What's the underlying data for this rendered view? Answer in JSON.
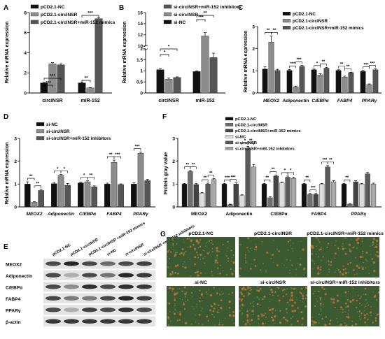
{
  "colors": {
    "black": "#111111",
    "dark_gray": "#555555",
    "gray": "#8c8c8c",
    "light_gray": "#cfcfcf",
    "axis": "#000000",
    "blot_bg": "#e4e4e4",
    "micro_green": "#3b5a32",
    "micro_orange": "#c0753a"
  },
  "chart_data": [
    {
      "panel": "A",
      "type": "bar",
      "categories": [
        "circINSR",
        "miR-152"
      ],
      "ylabel": "Relative mRNA expression",
      "ylim": [
        0,
        8
      ],
      "yticks": [
        0,
        2,
        4,
        6,
        8
      ],
      "series": [
        {
          "name": "pCD2.1-NC",
          "color": "#111111",
          "values": [
            1.0,
            1.0
          ],
          "err": [
            0.06,
            0.05
          ]
        },
        {
          "name": "pCD2.1-circINSR",
          "color": "#8c8c8c",
          "values": [
            2.9,
            0.5
          ],
          "err": [
            0.12,
            0.04
          ]
        },
        {
          "name": "pCD2.1-circINSR+miR-152 mimics",
          "color": "#555555",
          "values": [
            2.8,
            7.4
          ],
          "err": [
            0.1,
            0.12
          ]
        }
      ],
      "sig_labels": [
        "***",
        "***",
        "**",
        "***"
      ]
    },
    {
      "panel": "B",
      "type": "bar",
      "categories": [
        "circINSR",
        "miR-152"
      ],
      "ylabel": "Relative mRNA expression",
      "ylim": [
        0,
        16
      ],
      "yticks": [
        0.0,
        0.5,
        1.0,
        1.5,
        2.0,
        10,
        12,
        14,
        16
      ],
      "axis_break": [
        2.0,
        10
      ],
      "series": [
        {
          "name": "si-NC",
          "color": "#111111",
          "values": [
            1.05,
            0.97
          ],
          "err": [
            0.05,
            0.03
          ]
        },
        {
          "name": "si-circINSR",
          "color": "#8c8c8c",
          "values": [
            0.62,
            11.8
          ],
          "err": [
            0.05,
            0.6
          ]
        },
        {
          "name": "si-circINSR+miR-152 inhibitors",
          "color": "#555555",
          "values": [
            0.7,
            1.6
          ],
          "err": [
            0.03,
            0.2
          ]
        }
      ],
      "legend_order": [
        "si-circINSR+miR-152 inhibitors",
        "si-circINSR",
        "si-NC"
      ],
      "sig_labels": [
        "*",
        "*",
        "***",
        "**"
      ]
    },
    {
      "panel": "C",
      "type": "bar",
      "categories": [
        "MEOX2",
        "Adiponectin",
        "C/EBPα",
        "FABP4",
        "PPARγ"
      ],
      "ylabel": "Relative mRNA expression",
      "ylim": [
        0,
        3
      ],
      "yticks": [
        0,
        1,
        2,
        3
      ],
      "series": [
        {
          "name": "pCD2.1-NC",
          "color": "#111111",
          "values": [
            1.08,
            1.02,
            1.05,
            1.02,
            0.98
          ],
          "err": [
            0.1,
            0.04,
            0.03,
            0.03,
            0.04
          ]
        },
        {
          "name": "pCD2.1-circINSR",
          "color": "#8c8c8c",
          "values": [
            2.3,
            0.28,
            0.82,
            0.72,
            0.38
          ],
          "err": [
            0.28,
            0.03,
            0.05,
            0.04,
            0.03
          ]
        },
        {
          "name": "pCD2.1-circINSR+miR-152 mimics",
          "color": "#555555",
          "values": [
            1.02,
            1.2,
            1.12,
            0.92,
            1.05
          ],
          "err": [
            0.05,
            0.05,
            0.04,
            0.02,
            0.04
          ]
        }
      ],
      "sig_labels": [
        "**",
        "**",
        "***",
        "***",
        "*",
        "**",
        "**",
        "**",
        "***",
        "***"
      ]
    },
    {
      "panel": "D",
      "type": "bar",
      "categories": [
        "MEOX2",
        "Adiponectin",
        "C/EBPα",
        "FABP4",
        "PPARγ"
      ],
      "ylabel": "Relative mRNA expression",
      "ylim": [
        0,
        3
      ],
      "yticks": [
        0,
        1,
        2,
        3
      ],
      "series": [
        {
          "name": "si-NC",
          "color": "#111111",
          "values": [
            1.0,
            1.02,
            1.05,
            1.0,
            1.0
          ],
          "err": [
            0.1,
            0.05,
            0.03,
            0.04,
            0.05
          ]
        },
        {
          "name": "si-circINSR",
          "color": "#8c8c8c",
          "values": [
            0.2,
            1.38,
            1.1,
            1.95,
            2.35
          ],
          "err": [
            0.03,
            0.04,
            0.04,
            0.1,
            0.05
          ]
        },
        {
          "name": "si-circINSR+miR-152 inhibitors",
          "color": "#555555",
          "values": [
            0.72,
            0.95,
            0.88,
            0.98,
            1.15
          ],
          "err": [
            0.05,
            0.08,
            0.04,
            0.03,
            0.06
          ]
        }
      ],
      "sig_labels": [
        "**",
        "**",
        "*",
        "*",
        "*",
        "**",
        "**",
        "***",
        "***"
      ]
    },
    {
      "panel": "F",
      "type": "bar",
      "categories": [
        "MEOX2",
        "Adiponectin",
        "C/EBPα",
        "FABP4",
        "PPARγ"
      ],
      "ylabel": "Protein gray value",
      "ylim": [
        0,
        3
      ],
      "yticks": [
        0,
        1,
        2,
        3
      ],
      "series": [
        {
          "name": "pCD2.1-NC",
          "color": "#111111",
          "values": [
            1.0,
            1.0,
            1.0,
            1.0,
            1.0
          ],
          "err": [
            0.03,
            0.03,
            0.03,
            0.03,
            0.03
          ]
        },
        {
          "name": "pCD2.1-circINSR",
          "color": "#6e6e6e",
          "values": [
            1.55,
            0.1,
            0.4,
            0.55,
            0.12
          ],
          "err": [
            0.05,
            0.02,
            0.04,
            0.04,
            0.02
          ]
        },
        {
          "name": "pCD2.1-circINSR+miR-152 mimics",
          "color": "#444444",
          "values": [
            0.98,
            1.0,
            1.35,
            0.55,
            1.1
          ],
          "err": [
            0.04,
            0.05,
            0.05,
            0.04,
            0.05
          ]
        },
        {
          "name": "si-NC",
          "color": "#dcdcdc",
          "values": [
            0.6,
            0.5,
            1.05,
            1.0,
            1.0
          ],
          "err": [
            0.03,
            0.03,
            0.04,
            0.03,
            0.03
          ]
        },
        {
          "name": "si-circINSR",
          "color": "#5a5a5a",
          "values": [
            1.0,
            2.55,
            1.3,
            1.75,
            1.45
          ],
          "err": [
            0.04,
            0.1,
            0.05,
            0.06,
            0.06
          ]
        },
        {
          "name": "si-circINSR+miR-152 inhibitors",
          "color": "#a8a8a8",
          "values": [
            1.2,
            1.75,
            1.25,
            1.1,
            1.0
          ],
          "err": [
            0.04,
            0.1,
            0.05,
            0.05,
            0.04
          ]
        }
      ],
      "sig_labels": [
        "**",
        "**",
        "**",
        "**",
        "***",
        "***",
        "*",
        "**",
        "**",
        "**",
        "*",
        "*",
        "**",
        "***",
        "***",
        "**",
        "**"
      ]
    }
  ],
  "panel_e": {
    "letter": "E",
    "lanes": [
      "pCD2.1-NC",
      "pCD2.1-circINSR",
      "pCD2.1-circINSR +miR-152 mimics",
      "si-NC",
      "si-circINSR",
      "si-circINSR +miR-152 inhibitors"
    ],
    "proteins": [
      "MEOX2",
      "Adiponectin",
      "C/EBPα",
      "FABP4",
      "PPARγ",
      "β-actin"
    ],
    "band_intensity": [
      [
        0.75,
        0.95,
        0.75,
        0.55,
        0.75,
        0.8
      ],
      [
        0.75,
        0.15,
        0.75,
        0.5,
        0.95,
        0.85
      ],
      [
        0.75,
        0.35,
        0.9,
        0.75,
        0.9,
        0.85
      ],
      [
        0.75,
        0.45,
        0.45,
        0.75,
        0.95,
        0.8
      ],
      [
        0.75,
        0.15,
        0.8,
        0.75,
        0.9,
        0.75
      ],
      [
        0.85,
        0.85,
        0.85,
        0.85,
        0.85,
        0.85
      ]
    ]
  },
  "panel_g": {
    "letter": "G",
    "images": [
      "pCD2.1-NC",
      "pCD2.1-circINSR",
      "pCD2.1-circINSR+miR-152 mimics",
      "si-NC",
      "si-circINSR",
      "si-circINSR+miR-152 inhibitors"
    ],
    "orange_density": [
      0.35,
      0.12,
      0.32,
      0.3,
      0.45,
      0.33
    ]
  }
}
